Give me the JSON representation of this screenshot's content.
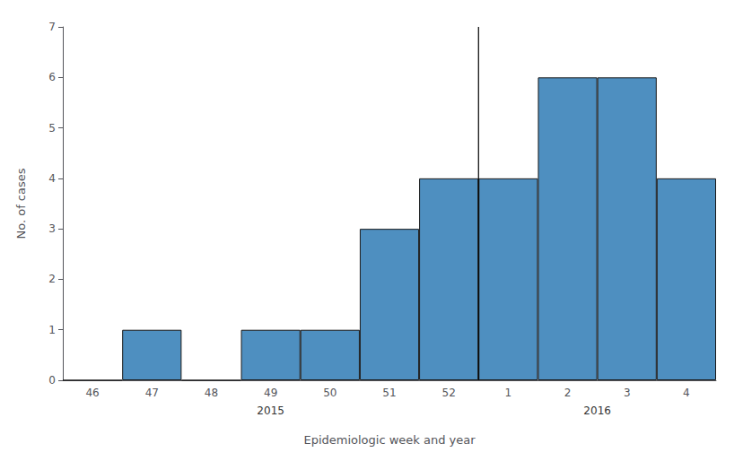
{
  "chart_data": {
    "type": "bar",
    "xlabel": "Epidemiologic week and year",
    "ylabel": "No. of cases",
    "categories": [
      "46",
      "47",
      "48",
      "49",
      "50",
      "51",
      "52",
      "1",
      "2",
      "3",
      "4"
    ],
    "values": [
      0,
      1,
      0,
      1,
      1,
      3,
      4,
      4,
      6,
      6,
      4
    ],
    "color": "#4e8fc0",
    "ylim": [
      0,
      7
    ],
    "yticks": [
      0,
      1,
      2,
      3,
      4,
      5,
      6,
      7
    ],
    "grid": false,
    "annotations": [
      {
        "text": "2015",
        "from": "46",
        "to": "52"
      },
      {
        "text": "2016",
        "from": "1",
        "to": "4"
      }
    ]
  }
}
